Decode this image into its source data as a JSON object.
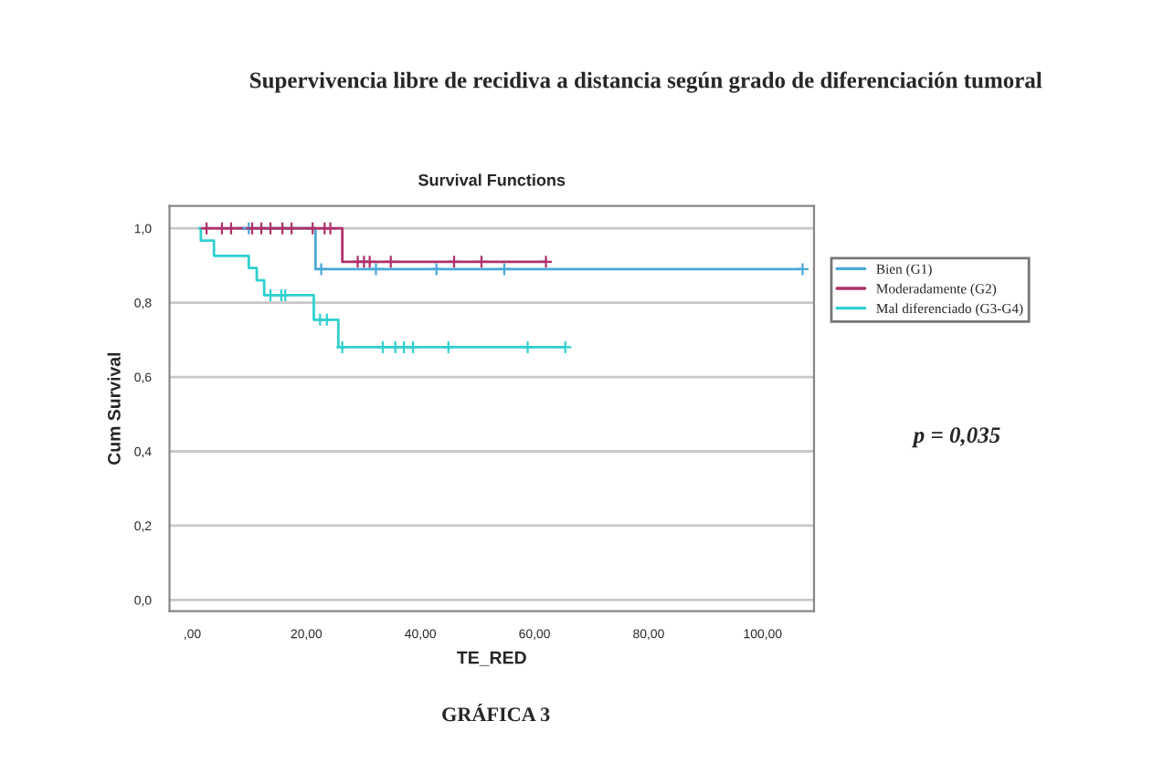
{
  "chart_data": {
    "type": "step",
    "title": "Supervivencia libre de recidiva a distancia según grado de diferenciación tumoral",
    "subtitle": "Survival Functions",
    "xlabel": "TE_RED",
    "ylabel": "Cum Survival",
    "xlim": [
      -4,
      109
    ],
    "ylim": [
      -0.03,
      1.06
    ],
    "xticks": [
      {
        "value": 0,
        "label": ",00"
      },
      {
        "value": 20,
        "label": "20,00"
      },
      {
        "value": 40,
        "label": "40,00"
      },
      {
        "value": 60,
        "label": "60,00"
      },
      {
        "value": 80,
        "label": "80,00"
      },
      {
        "value": 100,
        "label": "100,00"
      }
    ],
    "yticks": [
      {
        "value": 0,
        "label": "0,0"
      },
      {
        "value": 0.2,
        "label": "0,2"
      },
      {
        "value": 0.4,
        "label": "0,4"
      },
      {
        "value": 0.6,
        "label": "0,6"
      },
      {
        "value": 0.8,
        "label": "0,8"
      },
      {
        "value": 1.0,
        "label": "1,0"
      }
    ],
    "grid": "y",
    "legend": "right",
    "line_style": "solid",
    "series": [
      {
        "name": "Bien (G1)",
        "color": "#4aa8d8",
        "x": [
          8,
          21.6,
          107
        ],
        "values": [
          1.0,
          0.89,
          0.89
        ]
      },
      {
        "name": "Moderadamente (G2)",
        "color": "#b0306a",
        "x": [
          2,
          26.3,
          62
        ],
        "values": [
          1.0,
          0.91,
          0.91
        ]
      },
      {
        "name": "Mal diferenciado (G3-G4)",
        "color": "#30d0d0",
        "x": [
          1.2,
          1.5,
          3.8,
          9.9,
          11.3,
          12.6,
          21.3,
          25.6,
          65.4
        ],
        "values": [
          1.0,
          0.967,
          0.926,
          0.893,
          0.86,
          0.82,
          0.754,
          0.68,
          0.68
        ]
      },
      {
        "color": "#4aa8d8",
        "type": "scatter",
        "marker": "cross",
        "x": [
          9.9,
          22.6,
          32.2,
          42.8,
          54.7,
          107
        ],
        "values": [
          1.0,
          0.89,
          0.89,
          0.89,
          0.89,
          0.89
        ]
      },
      {
        "color": "#b0306a",
        "type": "scatter",
        "marker": "cross",
        "x": [
          2.5,
          5.2,
          6.8,
          10.5,
          12.1,
          13.7,
          15.8,
          17.4,
          21.1,
          23.2,
          24.2,
          29.0,
          30.1,
          31.1,
          34.8,
          45.9,
          50.7,
          62.0
        ],
        "values": [
          1.0,
          1.0,
          1.0,
          1.0,
          1.0,
          1.0,
          1.0,
          1.0,
          1.0,
          1.0,
          1.0,
          0.91,
          0.91,
          0.91,
          0.91,
          0.91,
          0.91,
          0.91
        ]
      },
      {
        "color": "#30d0d0",
        "type": "scatter",
        "marker": "cross",
        "x": [
          13.7,
          15.6,
          16.3,
          22.4,
          23.6,
          26.3,
          33.4,
          35.6,
          37.1,
          38.7,
          44.9,
          58.8,
          65.4
        ],
        "values": [
          0.82,
          0.82,
          0.82,
          0.754,
          0.754,
          0.68,
          0.68,
          0.68,
          0.68,
          0.68,
          0.68,
          0.68,
          0.68
        ]
      }
    ],
    "annotations": [
      "p = 0,035",
      "GRÁFICA 3"
    ]
  }
}
